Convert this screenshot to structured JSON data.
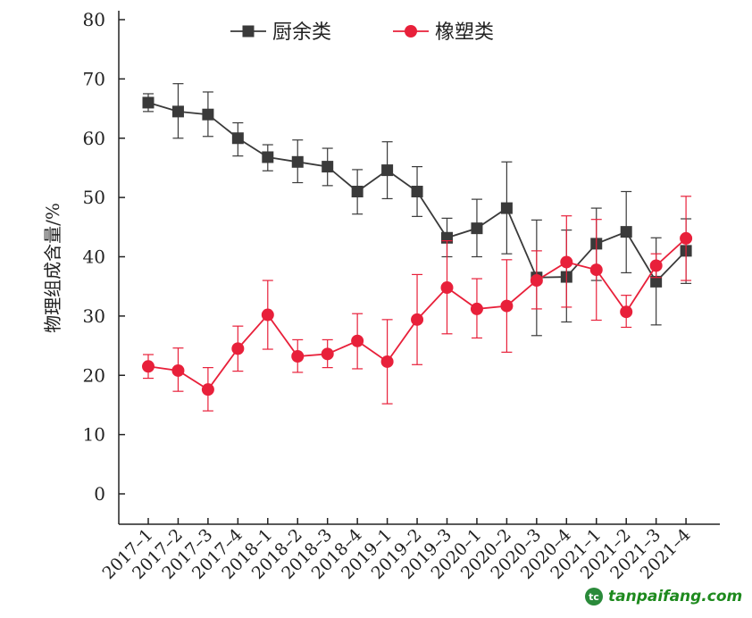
{
  "chart_data": {
    "type": "line",
    "title": "",
    "xlabel": "",
    "ylabel": "物理组成含量/%",
    "ylim": [
      0,
      80
    ],
    "yticks": [
      "0",
      "10",
      "20",
      "30",
      "40",
      "50",
      "60",
      "70",
      "80"
    ],
    "categories": [
      "2017–1",
      "2017–2",
      "2017–3",
      "2017–4",
      "2018–1",
      "2018–2",
      "2018–3",
      "2018–4",
      "2019–1",
      "2019–2",
      "2019–3",
      "2020–1",
      "2020–2",
      "2020–3",
      "2020–4",
      "2021–1",
      "2021–2",
      "2021–3",
      "2021–4"
    ],
    "legend_position": "top",
    "series": [
      {
        "name": "厨余类",
        "color": "#3a3a3a",
        "marker": "square",
        "values": [
          66,
          64.5,
          64,
          60,
          56.8,
          56,
          55.2,
          51,
          54.6,
          51,
          43.2,
          44.8,
          48.2,
          36.5,
          36.6,
          42.2,
          44.2,
          35.8,
          41
        ],
        "upper": [
          67.5,
          69.2,
          67.8,
          62.6,
          58.9,
          59.7,
          58.3,
          54.7,
          59.4,
          55.2,
          46.5,
          49.7,
          56,
          46.2,
          44.5,
          48.2,
          51,
          43.2,
          46.4
        ],
        "lower": [
          64.5,
          60,
          60.3,
          57,
          54.5,
          52.5,
          52,
          47.2,
          49.8,
          46.8,
          40,
          40,
          40.5,
          26.7,
          29,
          36,
          37.3,
          28.5,
          35.5
        ]
      },
      {
        "name": "橡塑类",
        "color": "#e8203a",
        "marker": "circle",
        "values": [
          21.5,
          20.8,
          17.6,
          24.5,
          30.2,
          23.2,
          23.6,
          25.8,
          22.3,
          29.4,
          34.8,
          31.2,
          31.7,
          36,
          39.1,
          37.8,
          30.7,
          38.5,
          43.1
        ],
        "upper": [
          23.5,
          24.6,
          21.3,
          28.3,
          36,
          26,
          26,
          30.4,
          29.4,
          37,
          42.7,
          36.3,
          39.5,
          41,
          46.9,
          46.3,
          33.5,
          40.5,
          50.2
        ],
        "lower": [
          19.5,
          17.3,
          14,
          20.7,
          24.4,
          20.5,
          21.3,
          21.1,
          15.2,
          21.8,
          27,
          26.3,
          23.9,
          31.2,
          31.5,
          29.3,
          28.1,
          36.5,
          36
        ]
      }
    ]
  },
  "watermark": {
    "logo": "tc",
    "text": "tanpaifang.com"
  }
}
